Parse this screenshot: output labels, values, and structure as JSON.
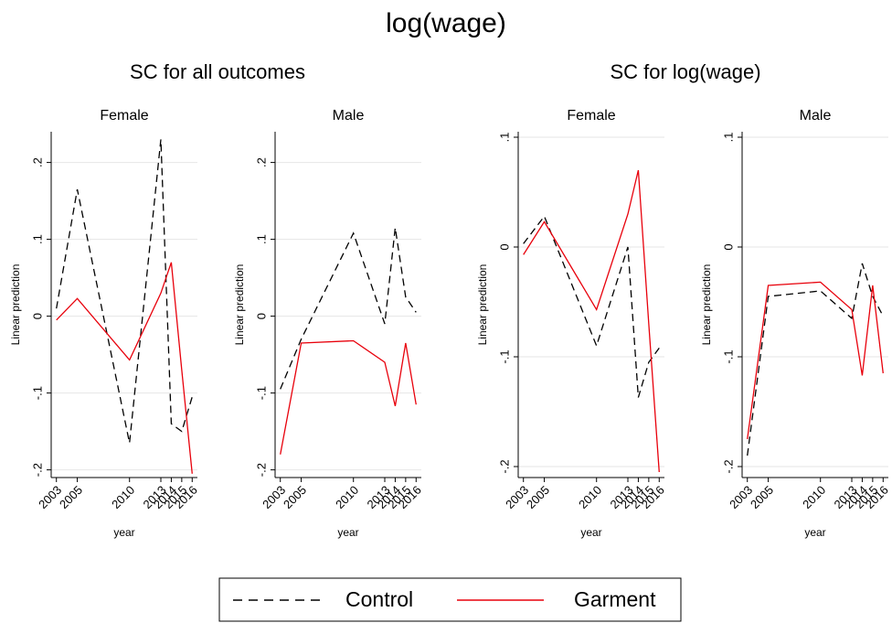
{
  "title": "log(wage)",
  "subtitles": [
    "SC for all outcomes",
    "SC for log(wage)"
  ],
  "chart_data": [
    {
      "type": "line",
      "title": "Female",
      "x_label": "year",
      "y_label": "Linear prediction",
      "x": [
        2003,
        2005,
        2010,
        2013,
        2014,
        2015,
        2016
      ],
      "xlim": [
        2002.5,
        2016.5
      ],
      "xticks": [
        2003,
        2005,
        2010,
        2013,
        2014,
        2015,
        2016
      ],
      "ylim": [
        -0.21,
        0.24
      ],
      "yticks": [
        {
          "value": -0.2,
          "label": "-.2"
        },
        {
          "value": -0.1,
          "label": "-.1"
        },
        0,
        {
          "value": 0.1,
          "label": ".1"
        },
        {
          "value": 0.2,
          "label": ".2"
        }
      ],
      "grid": true,
      "series": [
        {
          "name": "Control",
          "color": "#000000",
          "dashed": true,
          "values": [
            0.01,
            0.165,
            -0.165,
            0.23,
            -0.14,
            -0.15,
            -0.105
          ]
        },
        {
          "name": "Garment",
          "color": "#e8000b",
          "dashed": false,
          "values": [
            -0.005,
            0.023,
            -0.057,
            0.03,
            0.07,
            -0.07,
            -0.205
          ]
        }
      ]
    },
    {
      "type": "line",
      "title": "Male",
      "x_label": "year",
      "y_label": "Linear prediction",
      "x": [
        2003,
        2005,
        2010,
        2013,
        2014,
        2015,
        2016
      ],
      "xlim": [
        2002.5,
        2016.5
      ],
      "xticks": [
        2003,
        2005,
        2010,
        2013,
        2014,
        2015,
        2016
      ],
      "ylim": [
        -0.21,
        0.24
      ],
      "yticks": [
        {
          "value": -0.2,
          "label": "-.2"
        },
        {
          "value": -0.1,
          "label": "-.1"
        },
        0,
        {
          "value": 0.1,
          "label": ".1"
        },
        {
          "value": 0.2,
          "label": ".2"
        }
      ],
      "grid": true,
      "series": [
        {
          "name": "Control",
          "color": "#000000",
          "dashed": true,
          "values": [
            -0.095,
            -0.03,
            0.108,
            -0.01,
            0.115,
            0.025,
            0.005
          ]
        },
        {
          "name": "Garment",
          "color": "#e8000b",
          "dashed": false,
          "values": [
            -0.18,
            -0.035,
            -0.032,
            -0.06,
            -0.117,
            -0.035,
            -0.115
          ]
        }
      ]
    },
    {
      "type": "line",
      "title": "Female",
      "x_label": "year",
      "y_label": "Linear prediction",
      "x": [
        2003,
        2005,
        2010,
        2013,
        2014,
        2015,
        2016
      ],
      "xlim": [
        2002.5,
        2016.5
      ],
      "xticks": [
        2003,
        2005,
        2010,
        2013,
        2014,
        2015,
        2016
      ],
      "ylim": [
        -0.21,
        0.105
      ],
      "yticks": [
        {
          "value": -0.2,
          "label": "-.2"
        },
        {
          "value": -0.1,
          "label": "-.1"
        },
        0,
        {
          "value": 0.1,
          "label": ".1"
        }
      ],
      "grid": true,
      "series": [
        {
          "name": "Control",
          "color": "#000000",
          "dashed": true,
          "values": [
            0.003,
            0.028,
            -0.09,
            0.0,
            -0.137,
            -0.105,
            -0.092
          ]
        },
        {
          "name": "Garment",
          "color": "#e8000b",
          "dashed": false,
          "values": [
            -0.007,
            0.023,
            -0.057,
            0.03,
            0.07,
            -0.07,
            -0.205
          ]
        }
      ]
    },
    {
      "type": "line",
      "title": "Male",
      "x_label": "year",
      "y_label": "Linear prediction",
      "x": [
        2003,
        2005,
        2010,
        2013,
        2014,
        2015,
        2016
      ],
      "xlim": [
        2002.5,
        2016.5
      ],
      "xticks": [
        2003,
        2005,
        2010,
        2013,
        2014,
        2015,
        2016
      ],
      "ylim": [
        -0.21,
        0.105
      ],
      "yticks": [
        {
          "value": -0.2,
          "label": "-.2"
        },
        {
          "value": -0.1,
          "label": "-.1"
        },
        0,
        {
          "value": 0.1,
          "label": ".1"
        }
      ],
      "grid": true,
      "series": [
        {
          "name": "Control",
          "color": "#000000",
          "dashed": true,
          "values": [
            -0.19,
            -0.045,
            -0.04,
            -0.065,
            -0.015,
            -0.045,
            -0.063
          ]
        },
        {
          "name": "Garment",
          "color": "#e8000b",
          "dashed": false,
          "values": [
            -0.175,
            -0.035,
            -0.032,
            -0.057,
            -0.117,
            -0.035,
            -0.115
          ]
        }
      ]
    }
  ]
}
